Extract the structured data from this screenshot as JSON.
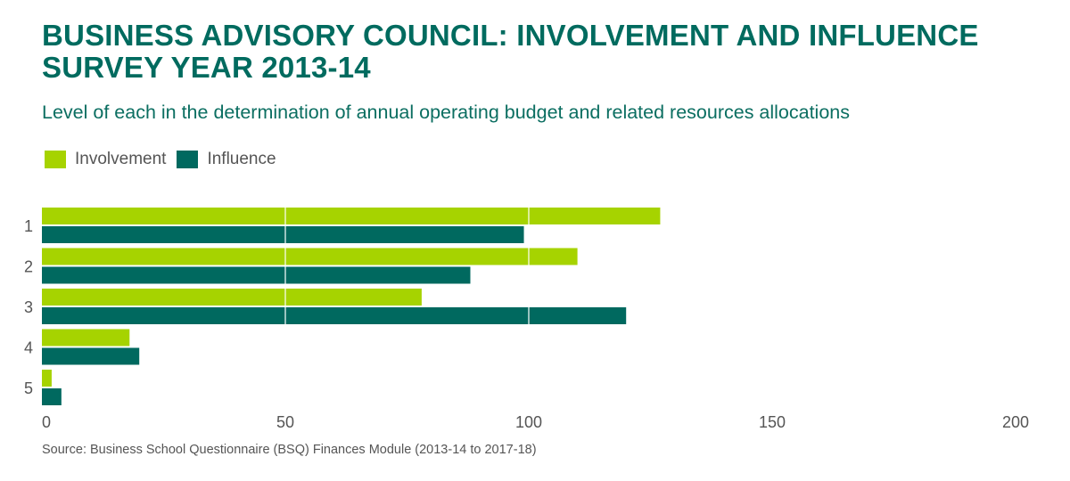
{
  "title_line1": "BUSINESS ADVISORY COUNCIL: INVOLVEMENT AND INFLUENCE",
  "title_line2": "SURVEY YEAR 2013-14",
  "subtitle": "Level of each in the determination of annual operating budget and related resources allocations",
  "source": "Source: Business School Questionnaire (BSQ) Finances Module (2013-14 to 2017-18)",
  "legend": {
    "involvement": "Involvement",
    "influence": "Influence"
  },
  "colors": {
    "involvement": "#A6D300",
    "influence": "#00695F",
    "title": "#006B5F"
  },
  "chart_data": {
    "type": "bar",
    "orientation": "horizontal",
    "categories": [
      "1",
      "2",
      "3",
      "4",
      "5"
    ],
    "series": [
      {
        "name": "Involvement",
        "values": [
          127,
          110,
          78,
          18,
          2
        ]
      },
      {
        "name": "Influence",
        "values": [
          99,
          88,
          120,
          20,
          4
        ]
      }
    ],
    "xlim": [
      0,
      200
    ],
    "xticks": [
      "0",
      "50",
      "100",
      "150",
      "200"
    ],
    "xtick_values": [
      0,
      50,
      100,
      150,
      200
    ],
    "grid": "vertical lines over bars",
    "legend_position": "top-left"
  }
}
